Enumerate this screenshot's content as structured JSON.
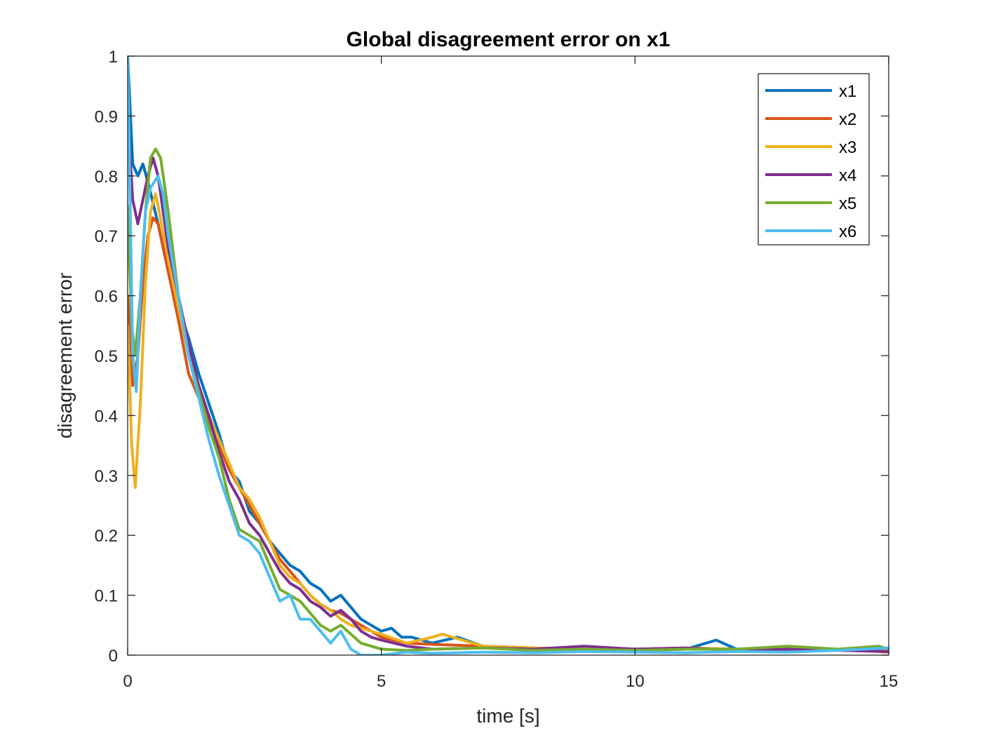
{
  "chart_data": {
    "type": "line",
    "title": "Global disagreement error on x1",
    "xlabel": "time [s]",
    "ylabel": "disagreement error",
    "xlim": [
      0,
      15
    ],
    "ylim": [
      0,
      1
    ],
    "xticks": [
      0,
      5,
      10,
      15
    ],
    "xtick_labels": [
      "0",
      "5",
      "10",
      "15"
    ],
    "yticks": [
      0,
      0.1,
      0.2,
      0.3,
      0.4,
      0.5,
      0.6,
      0.7,
      0.8,
      0.9,
      1
    ],
    "ytick_labels": [
      "0",
      "0.1",
      "0.2",
      "0.3",
      "0.4",
      "0.5",
      "0.6",
      "0.7",
      "0.8",
      "0.9",
      "1"
    ],
    "grid": false,
    "legend_position": "top-right",
    "series": [
      {
        "name": "x1",
        "color": "#0072BD",
        "points": [
          [
            0,
            1.0
          ],
          [
            0.1,
            0.82
          ],
          [
            0.2,
            0.8
          ],
          [
            0.3,
            0.82
          ],
          [
            0.4,
            0.79
          ],
          [
            0.6,
            0.72
          ],
          [
            0.8,
            0.64
          ],
          [
            1.0,
            0.58
          ],
          [
            1.2,
            0.53
          ],
          [
            1.4,
            0.47
          ],
          [
            1.6,
            0.42
          ],
          [
            1.8,
            0.37
          ],
          [
            2.0,
            0.31
          ],
          [
            2.2,
            0.29
          ],
          [
            2.4,
            0.24
          ],
          [
            2.6,
            0.22
          ],
          [
            2.8,
            0.19
          ],
          [
            3.0,
            0.17
          ],
          [
            3.2,
            0.15
          ],
          [
            3.4,
            0.14
          ],
          [
            3.6,
            0.12
          ],
          [
            3.8,
            0.11
          ],
          [
            4.0,
            0.09
          ],
          [
            4.2,
            0.1
          ],
          [
            4.4,
            0.08
          ],
          [
            4.6,
            0.06
          ],
          [
            4.8,
            0.05
          ],
          [
            5.0,
            0.04
          ],
          [
            5.2,
            0.045
          ],
          [
            5.4,
            0.03
          ],
          [
            5.6,
            0.03
          ],
          [
            6.0,
            0.02
          ],
          [
            6.5,
            0.03
          ],
          [
            7.0,
            0.015
          ],
          [
            8.0,
            0.012
          ],
          [
            9.0,
            0.01
          ],
          [
            10.0,
            0.008
          ],
          [
            11.0,
            0.01
          ],
          [
            11.6,
            0.025
          ],
          [
            12.0,
            0.01
          ],
          [
            13.0,
            0.008
          ],
          [
            14.0,
            0.01
          ],
          [
            15.0,
            0.006
          ]
        ]
      },
      {
        "name": "x2",
        "color": "#D95319",
        "points": [
          [
            0,
            0.6
          ],
          [
            0.1,
            0.45
          ],
          [
            0.2,
            0.5
          ],
          [
            0.3,
            0.62
          ],
          [
            0.4,
            0.7
          ],
          [
            0.5,
            0.73
          ],
          [
            0.6,
            0.72
          ],
          [
            0.8,
            0.64
          ],
          [
            1.0,
            0.56
          ],
          [
            1.2,
            0.47
          ],
          [
            1.4,
            0.43
          ],
          [
            1.6,
            0.39
          ],
          [
            1.8,
            0.35
          ],
          [
            2.0,
            0.31
          ],
          [
            2.2,
            0.28
          ],
          [
            2.4,
            0.25
          ],
          [
            2.6,
            0.22
          ],
          [
            2.8,
            0.19
          ],
          [
            3.0,
            0.16
          ],
          [
            3.2,
            0.14
          ],
          [
            3.4,
            0.12
          ],
          [
            3.6,
            0.1
          ],
          [
            3.8,
            0.085
          ],
          [
            4.0,
            0.075
          ],
          [
            4.2,
            0.07
          ],
          [
            4.4,
            0.06
          ],
          [
            4.6,
            0.05
          ],
          [
            4.8,
            0.04
          ],
          [
            5.0,
            0.03
          ],
          [
            5.5,
            0.02
          ],
          [
            6.0,
            0.018
          ],
          [
            7.0,
            0.015
          ],
          [
            8.0,
            0.012
          ],
          [
            9.0,
            0.01
          ],
          [
            10.0,
            0.01
          ],
          [
            11.0,
            0.012
          ],
          [
            12.0,
            0.01
          ],
          [
            13.0,
            0.008
          ],
          [
            14.0,
            0.01
          ],
          [
            15.0,
            0.005
          ]
        ]
      },
      {
        "name": "x3",
        "color": "#EDB120",
        "points": [
          [
            0,
            0.55
          ],
          [
            0.08,
            0.35
          ],
          [
            0.15,
            0.28
          ],
          [
            0.25,
            0.42
          ],
          [
            0.35,
            0.62
          ],
          [
            0.45,
            0.74
          ],
          [
            0.55,
            0.77
          ],
          [
            0.6,
            0.75
          ],
          [
            0.8,
            0.66
          ],
          [
            1.0,
            0.58
          ],
          [
            1.2,
            0.5
          ],
          [
            1.4,
            0.45
          ],
          [
            1.6,
            0.4
          ],
          [
            1.8,
            0.36
          ],
          [
            2.0,
            0.32
          ],
          [
            2.2,
            0.28
          ],
          [
            2.4,
            0.26
          ],
          [
            2.6,
            0.23
          ],
          [
            2.8,
            0.19
          ],
          [
            3.0,
            0.15
          ],
          [
            3.2,
            0.13
          ],
          [
            3.4,
            0.12
          ],
          [
            3.6,
            0.1
          ],
          [
            3.8,
            0.085
          ],
          [
            4.0,
            0.075
          ],
          [
            4.2,
            0.06
          ],
          [
            4.4,
            0.05
          ],
          [
            4.6,
            0.045
          ],
          [
            4.8,
            0.04
          ],
          [
            5.0,
            0.035
          ],
          [
            5.5,
            0.02
          ],
          [
            6.0,
            0.03
          ],
          [
            6.2,
            0.035
          ],
          [
            7.0,
            0.015
          ],
          [
            8.0,
            0.012
          ],
          [
            9.0,
            0.01
          ],
          [
            10.0,
            0.01
          ],
          [
            11.0,
            0.012
          ],
          [
            12.0,
            0.01
          ],
          [
            13.0,
            0.012
          ],
          [
            14.0,
            0.01
          ],
          [
            15.0,
            0.008
          ]
        ]
      },
      {
        "name": "x4",
        "color": "#7E2F8E",
        "points": [
          [
            0,
            0.9
          ],
          [
            0.1,
            0.76
          ],
          [
            0.2,
            0.72
          ],
          [
            0.3,
            0.76
          ],
          [
            0.4,
            0.8
          ],
          [
            0.5,
            0.83
          ],
          [
            0.6,
            0.8
          ],
          [
            0.8,
            0.68
          ],
          [
            1.0,
            0.6
          ],
          [
            1.2,
            0.52
          ],
          [
            1.4,
            0.45
          ],
          [
            1.6,
            0.4
          ],
          [
            1.8,
            0.34
          ],
          [
            2.0,
            0.29
          ],
          [
            2.2,
            0.26
          ],
          [
            2.4,
            0.22
          ],
          [
            2.6,
            0.2
          ],
          [
            2.8,
            0.17
          ],
          [
            3.0,
            0.14
          ],
          [
            3.2,
            0.12
          ],
          [
            3.4,
            0.11
          ],
          [
            3.6,
            0.09
          ],
          [
            3.8,
            0.08
          ],
          [
            4.0,
            0.065
          ],
          [
            4.2,
            0.075
          ],
          [
            4.4,
            0.06
          ],
          [
            4.6,
            0.04
          ],
          [
            4.8,
            0.03
          ],
          [
            5.0,
            0.025
          ],
          [
            5.5,
            0.015
          ],
          [
            6.0,
            0.01
          ],
          [
            7.0,
            0.012
          ],
          [
            8.0,
            0.01
          ],
          [
            9.0,
            0.015
          ],
          [
            10.0,
            0.01
          ],
          [
            11.0,
            0.012
          ],
          [
            12.0,
            0.008
          ],
          [
            13.0,
            0.01
          ],
          [
            14.0,
            0.008
          ],
          [
            15.0,
            0.006
          ]
        ]
      },
      {
        "name": "x5",
        "color": "#77AC30",
        "points": [
          [
            0,
            0.75
          ],
          [
            0.08,
            0.55
          ],
          [
            0.15,
            0.5
          ],
          [
            0.25,
            0.6
          ],
          [
            0.35,
            0.74
          ],
          [
            0.45,
            0.83
          ],
          [
            0.55,
            0.845
          ],
          [
            0.65,
            0.83
          ],
          [
            0.8,
            0.74
          ],
          [
            1.0,
            0.6
          ],
          [
            1.2,
            0.5
          ],
          [
            1.4,
            0.44
          ],
          [
            1.6,
            0.38
          ],
          [
            1.8,
            0.33
          ],
          [
            2.0,
            0.26
          ],
          [
            2.2,
            0.21
          ],
          [
            2.4,
            0.2
          ],
          [
            2.6,
            0.19
          ],
          [
            2.8,
            0.15
          ],
          [
            3.0,
            0.11
          ],
          [
            3.2,
            0.1
          ],
          [
            3.4,
            0.09
          ],
          [
            3.6,
            0.07
          ],
          [
            3.8,
            0.05
          ],
          [
            4.0,
            0.04
          ],
          [
            4.2,
            0.05
          ],
          [
            4.4,
            0.035
          ],
          [
            4.6,
            0.02
          ],
          [
            4.8,
            0.015
          ],
          [
            5.0,
            0.01
          ],
          [
            5.5,
            0.008
          ],
          [
            6.0,
            0.01
          ],
          [
            7.0,
            0.012
          ],
          [
            8.0,
            0.008
          ],
          [
            9.0,
            0.01
          ],
          [
            10.0,
            0.008
          ],
          [
            11.0,
            0.01
          ],
          [
            12.0,
            0.01
          ],
          [
            13.0,
            0.015
          ],
          [
            14.0,
            0.01
          ],
          [
            14.8,
            0.015
          ],
          [
            15.0,
            0.01
          ]
        ]
      },
      {
        "name": "x6",
        "color": "#4DBEEE",
        "points": [
          [
            0,
            1.0
          ],
          [
            0.1,
            0.5
          ],
          [
            0.17,
            0.44
          ],
          [
            0.25,
            0.6
          ],
          [
            0.35,
            0.74
          ],
          [
            0.45,
            0.78
          ],
          [
            0.6,
            0.8
          ],
          [
            0.7,
            0.77
          ],
          [
            0.8,
            0.7
          ],
          [
            1.0,
            0.6
          ],
          [
            1.2,
            0.5
          ],
          [
            1.4,
            0.43
          ],
          [
            1.6,
            0.36
          ],
          [
            1.8,
            0.3
          ],
          [
            2.0,
            0.25
          ],
          [
            2.2,
            0.2
          ],
          [
            2.4,
            0.19
          ],
          [
            2.6,
            0.17
          ],
          [
            2.8,
            0.13
          ],
          [
            3.0,
            0.09
          ],
          [
            3.2,
            0.1
          ],
          [
            3.4,
            0.06
          ],
          [
            3.6,
            0.06
          ],
          [
            3.8,
            0.04
          ],
          [
            4.0,
            0.02
          ],
          [
            4.2,
            0.04
          ],
          [
            4.4,
            0.01
          ],
          [
            4.6,
            0.0
          ],
          [
            5.0,
            0.0
          ],
          [
            5.5,
            0.005
          ],
          [
            6.0,
            0.003
          ],
          [
            7.0,
            0.005
          ],
          [
            8.0,
            0.004
          ],
          [
            9.0,
            0.006
          ],
          [
            10.0,
            0.005
          ],
          [
            11.0,
            0.004
          ],
          [
            12.0,
            0.006
          ],
          [
            13.0,
            0.005
          ],
          [
            14.0,
            0.008
          ],
          [
            15.0,
            0.012
          ]
        ]
      }
    ]
  }
}
